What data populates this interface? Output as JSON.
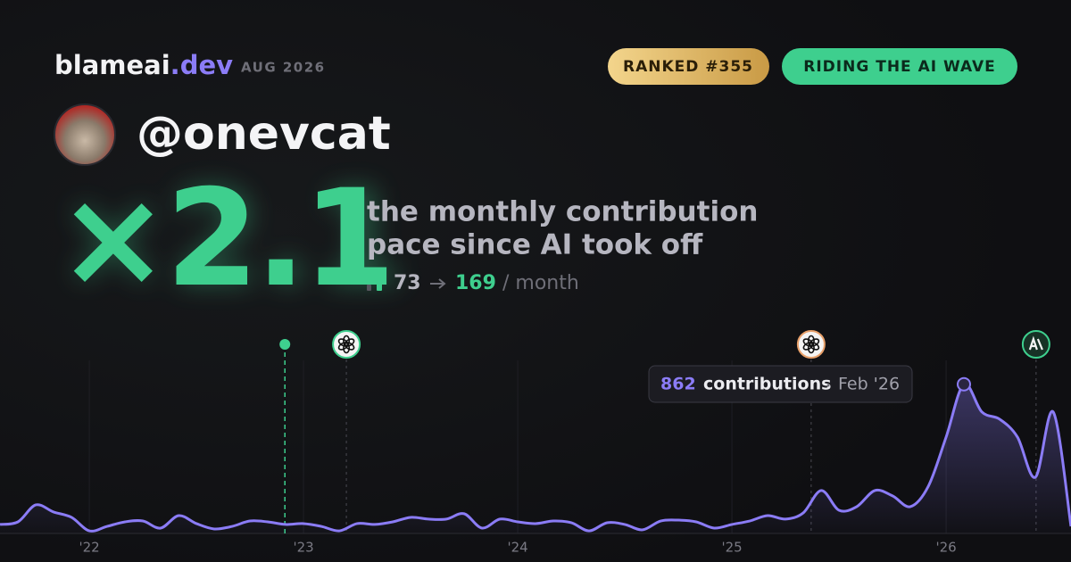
{
  "header": {
    "brand": "blameai",
    "brand_suffix": ".dev",
    "period": "AUG 2026",
    "rank_badge": "RANKED #355",
    "status_badge": "RIDING THE AI WAVE"
  },
  "profile": {
    "handle": "@onevcat"
  },
  "hero": {
    "multiplier": "×2.1",
    "caption_line1": "the monthly contribution",
    "caption_line2": "pace since AI took off",
    "before": 73,
    "after": 169,
    "unit": "/ month"
  },
  "chart_data": {
    "type": "line",
    "x": [
      2021.583,
      2021.667,
      2021.75,
      2021.833,
      2021.917,
      2022,
      2022.083,
      2022.167,
      2022.25,
      2022.333,
      2022.417,
      2022.5,
      2022.583,
      2022.667,
      2022.75,
      2022.833,
      2022.917,
      2023,
      2023.083,
      2023.167,
      2023.25,
      2023.333,
      2023.417,
      2023.5,
      2023.583,
      2023.667,
      2023.75,
      2023.833,
      2023.917,
      2024,
      2024.083,
      2024.167,
      2024.25,
      2024.333,
      2024.417,
      2024.5,
      2024.583,
      2024.667,
      2024.75,
      2024.833,
      2024.917,
      2025,
      2025.083,
      2025.167,
      2025.25,
      2025.333,
      2025.417,
      2025.5,
      2025.583,
      2025.667,
      2025.75,
      2025.833,
      2025.917,
      2026,
      2026.083,
      2026.167,
      2026.25,
      2026.333,
      2026.417,
      2026.5,
      2026.583
    ],
    "series": [
      {
        "name": "contributions",
        "color": "#8b7cf6",
        "values": [
          52,
          67,
          165,
          124,
          93,
          15,
          41,
          67,
          72,
          31,
          103,
          57,
          26,
          41,
          72,
          67,
          52,
          57,
          41,
          15,
          57,
          52,
          67,
          93,
          83,
          83,
          114,
          31,
          83,
          67,
          57,
          72,
          62,
          15,
          62,
          52,
          21,
          72,
          77,
          67,
          31,
          52,
          72,
          103,
          83,
          119,
          248,
          134,
          155,
          248,
          217,
          155,
          273,
          557,
          862,
          702,
          660,
          557,
          325,
          702,
          41
        ]
      }
    ],
    "xlim": [
      2021.583,
      2026.583
    ],
    "ylim": [
      0,
      1000
    ],
    "xticks": [
      {
        "value": 2022,
        "label": "'22"
      },
      {
        "value": 2023,
        "label": "'23"
      },
      {
        "value": 2024,
        "label": "'24"
      },
      {
        "value": 2025,
        "label": "'25"
      },
      {
        "value": 2026,
        "label": "'26"
      }
    ],
    "grid": true,
    "markers": [
      {
        "x": 2022.913,
        "kind": "dot",
        "color": "#3ecf8e"
      },
      {
        "x": 2023.2,
        "kind": "openai",
        "color": "#3ecf8e"
      },
      {
        "x": 2025.37,
        "kind": "openai",
        "color": "#e8a06a"
      },
      {
        "x": 2026.42,
        "kind": "anthropic",
        "color": "#3ecf8e"
      }
    ],
    "tooltip": {
      "index": 54,
      "label": "contributions",
      "date": "Feb '26"
    }
  }
}
